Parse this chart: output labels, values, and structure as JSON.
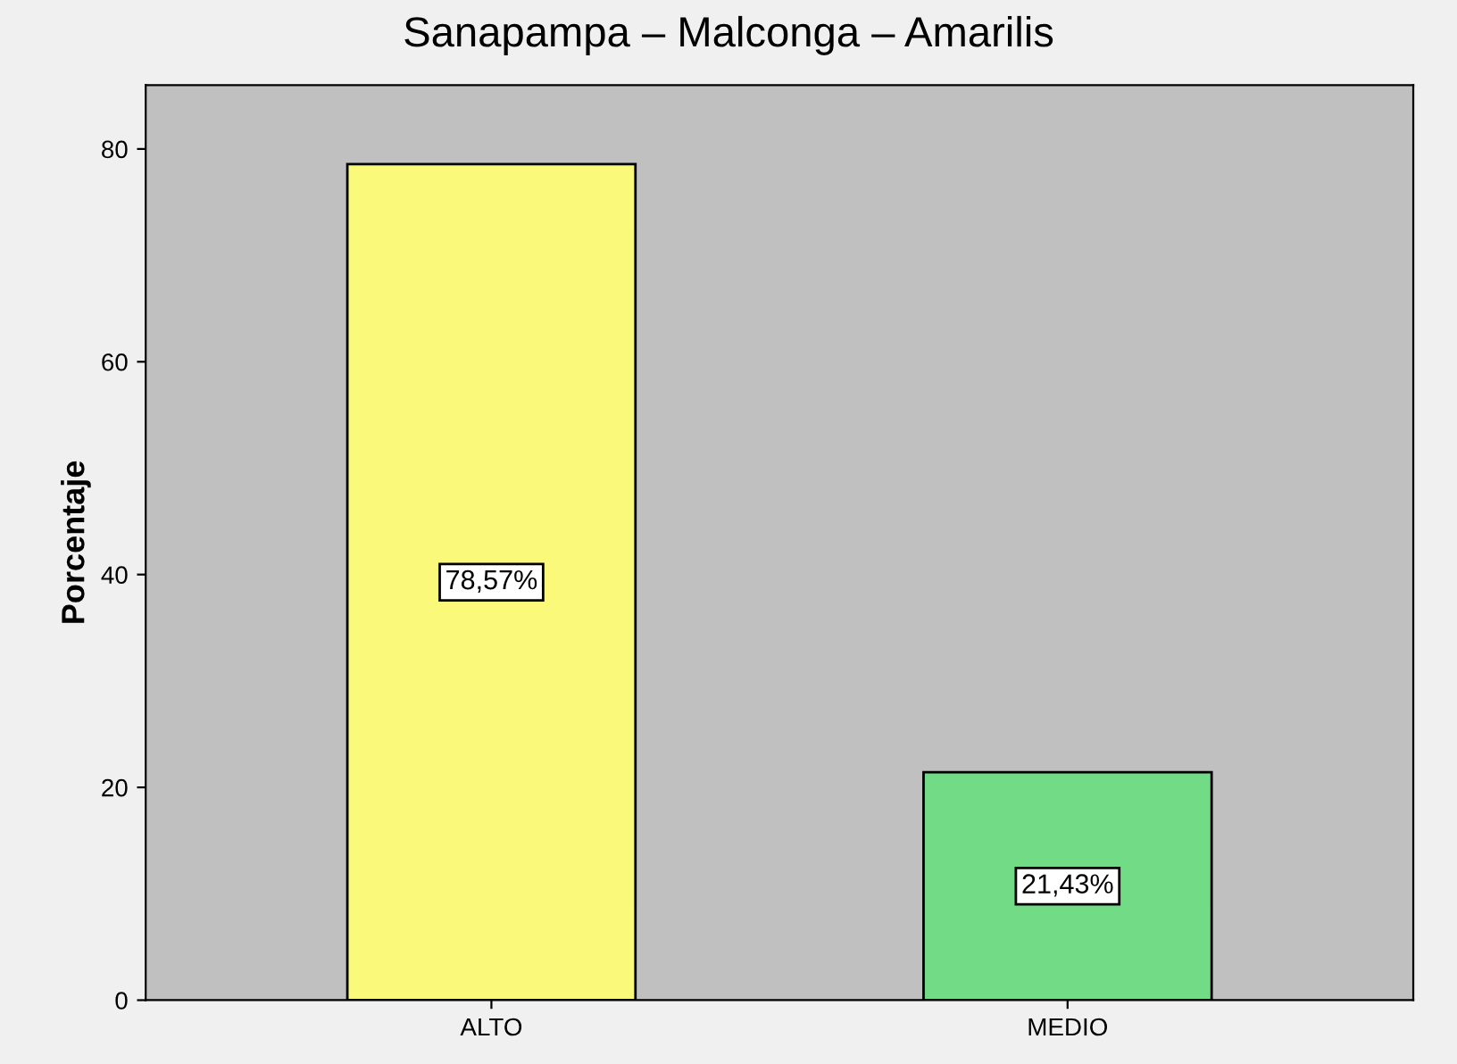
{
  "chart_data": {
    "type": "bar",
    "title": "Sanapampa – Malconga – Amarilis",
    "ylabel": "Porcentaje",
    "categories": [
      "ALTO",
      "MEDIO"
    ],
    "values": [
      78.57,
      21.43
    ],
    "colors": [
      "#fbf97a",
      "#71dc85"
    ],
    "value_labels": [
      "78,57%",
      "21,43%"
    ],
    "ylim": [
      0,
      86
    ],
    "yticks": [
      0,
      20,
      40,
      60,
      80
    ],
    "grid": false,
    "legend": false
  }
}
